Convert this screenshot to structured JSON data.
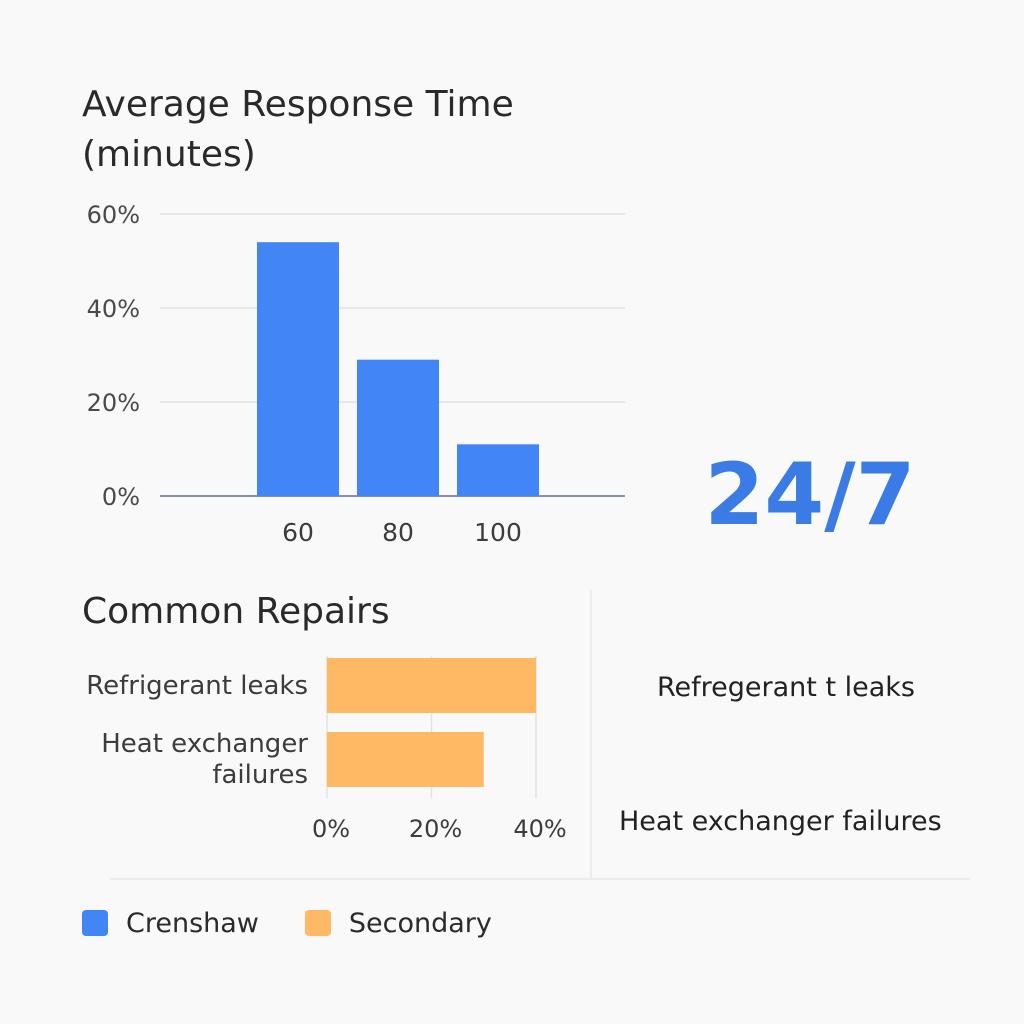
{
  "colors": {
    "primary": "#4285f4",
    "secondary": "#ffb964",
    "big_stat": "#3b7be6"
  },
  "chart_data": [
    {
      "type": "bar",
      "title": "Average Response Time (minutes)",
      "categories": [
        "60",
        "80",
        "100"
      ],
      "values": [
        54,
        29,
        11
      ],
      "ylim": [
        0,
        60
      ],
      "yticks": [
        "0%",
        "20%",
        "40%",
        "60%"
      ],
      "grid": true,
      "color": "#4285f4"
    },
    {
      "type": "bar",
      "orientation": "horizontal",
      "title": "Common Repairs",
      "categories": [
        "Refrigerant leaks",
        "Heat exchanger failures"
      ],
      "values": [
        40,
        30
      ],
      "xlim": [
        0,
        40
      ],
      "xticks": [
        "0%",
        "20%",
        "40%"
      ],
      "grid": true,
      "color": "#ffb964"
    }
  ],
  "big_stat": "24/7",
  "side_labels": [
    "Refregerant t leaks",
    "Heat exchanger failures"
  ],
  "legend": [
    {
      "label": "Crenshaw",
      "color": "#4285f4"
    },
    {
      "label": "Secondary",
      "color": "#ffb964"
    }
  ]
}
